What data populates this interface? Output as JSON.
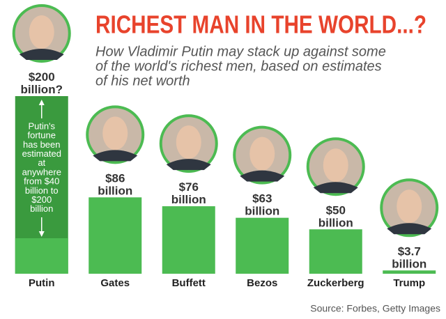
{
  "chart_data": {
    "type": "bar",
    "title": "RICHEST MAN IN THE WORLD...?",
    "subtitle": [
      "How Vladimir Putin may stack up against some",
      "of the world's richest men, based on estimates",
      "of his net worth"
    ],
    "categories": [
      "Putin",
      "Gates",
      "Buffett",
      "Bezos",
      "Zuckerberg",
      "Trump"
    ],
    "values": [
      200,
      86,
      76,
      63,
      50,
      3.7
    ],
    "value_labels": [
      "$200 billion?",
      "$86 billion",
      "$76 billion",
      "$63 billion",
      "$50 billion",
      "$3.7 billion"
    ],
    "range_low": [
      40,
      null,
      null,
      null,
      null,
      null
    ],
    "annotation": [
      "Putin's",
      "fortune",
      "has been",
      "estimated",
      "at",
      "anywhere",
      "from $40",
      "billion to",
      "$200",
      "billion"
    ],
    "color": "#4cbb52",
    "range_color": "#3a9a3e",
    "ylim": [
      0,
      200
    ],
    "source": "Source: Forbes, Getty Images"
  }
}
